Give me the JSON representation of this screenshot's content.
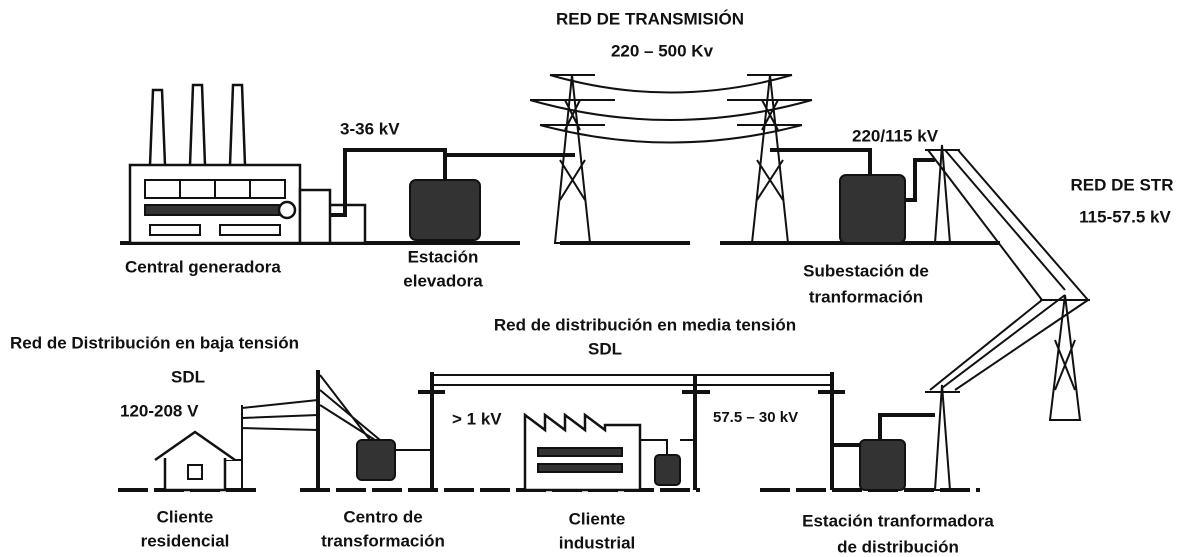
{
  "transmission": {
    "title": "RED DE TRANSMISIÓN",
    "voltage": "220 – 500 Kv"
  },
  "generation_voltage": "3-36 kV",
  "substation_voltage": "220/115 kV",
  "str": {
    "title": "RED DE STR",
    "voltage": "115-57.5 kV"
  },
  "generator": "Central generadora",
  "step_up": [
    "Estación",
    "elevadora"
  ],
  "substation": [
    "Subestación de",
    "tranformación"
  ],
  "medium_network": {
    "title": "Red de distribución en media tensión",
    "subtitle": "SDL"
  },
  "low_network": {
    "title": "Red de Distribución en baja tensión",
    "subtitle": "SDL",
    "voltage": "120-208 V"
  },
  "medium_voltage_left": "> 1 kV",
  "medium_voltage_right": "57.5 – 30 kV",
  "residential": [
    "Cliente",
    "residencial"
  ],
  "transformation_center": [
    "Centro de",
    "transformación"
  ],
  "industrial": [
    "Cliente",
    "industrial"
  ],
  "distribution_station": [
    "Estación tranformadora",
    "de distribución"
  ]
}
